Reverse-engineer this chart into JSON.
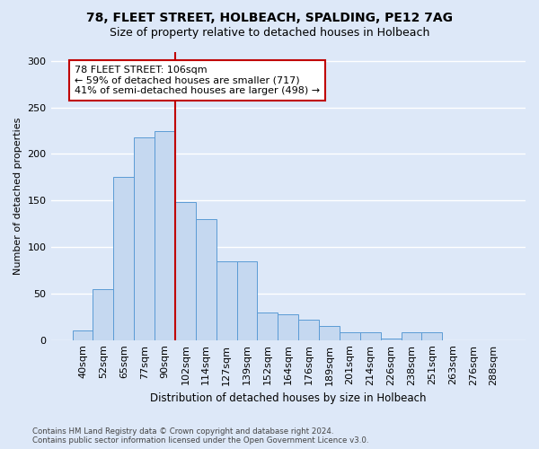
{
  "title1": "78, FLEET STREET, HOLBEACH, SPALDING, PE12 7AG",
  "title2": "Size of property relative to detached houses in Holbeach",
  "xlabel": "Distribution of detached houses by size in Holbeach",
  "ylabel": "Number of detached properties",
  "categories": [
    "40sqm",
    "52sqm",
    "65sqm",
    "77sqm",
    "90sqm",
    "102sqm",
    "114sqm",
    "127sqm",
    "139sqm",
    "152sqm",
    "164sqm",
    "176sqm",
    "189sqm",
    "201sqm",
    "214sqm",
    "226sqm",
    "238sqm",
    "251sqm",
    "263sqm",
    "276sqm",
    "288sqm"
  ],
  "values": [
    10,
    55,
    175,
    218,
    225,
    148,
    130,
    85,
    85,
    30,
    28,
    22,
    15,
    8,
    8,
    2,
    8,
    8,
    0,
    0,
    0
  ],
  "bar_color": "#c5d8f0",
  "bar_edge_color": "#5b9bd5",
  "vline_color": "#c00000",
  "vline_pos": 4.5,
  "annotation_text": "78 FLEET STREET: 106sqm\n← 59% of detached houses are smaller (717)\n41% of semi-detached houses are larger (498) →",
  "footnote_line1": "Contains HM Land Registry data © Crown copyright and database right 2024.",
  "footnote_line2": "Contains public sector information licensed under the Open Government Licence v3.0.",
  "ylim": [
    0,
    310
  ],
  "yticks": [
    0,
    50,
    100,
    150,
    200,
    250,
    300
  ],
  "bg_color": "#dde8f8",
  "grid_color": "white",
  "title1_fontsize": 10,
  "title2_fontsize": 9,
  "ann_fontsize": 8
}
